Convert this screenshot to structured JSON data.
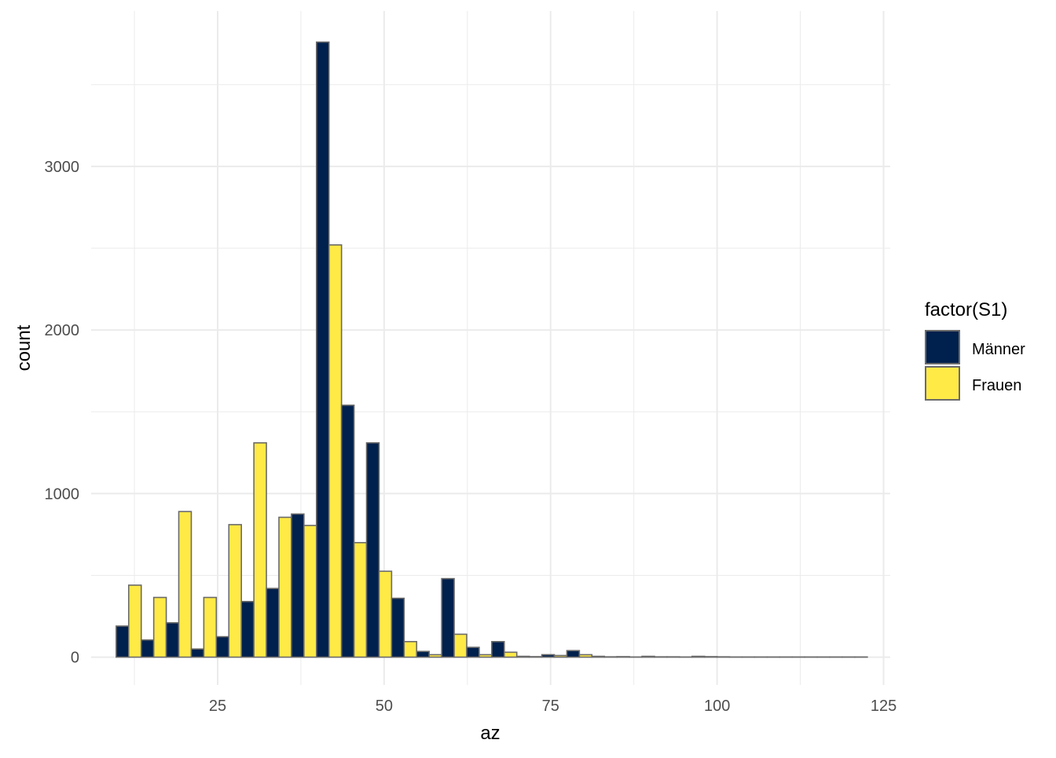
{
  "chart_data": {
    "type": "bar",
    "subtype": "histogram-dodged",
    "xlabel": "az",
    "ylabel": "count",
    "xlim": [
      6,
      126
    ],
    "ylim": [
      -170,
      3950
    ],
    "x_ticks": [
      25,
      50,
      75,
      100,
      125
    ],
    "y_ticks": [
      0,
      1000,
      2000,
      3000
    ],
    "x_tick_labels": [
      "25",
      "50",
      "75",
      "100",
      "125"
    ],
    "y_tick_labels": [
      "0",
      "1000",
      "2000",
      "3000"
    ],
    "grid": true,
    "legend": {
      "title": "factor(S1)",
      "position": "right",
      "entries": [
        "Männer",
        "Frauen"
      ]
    },
    "bin_width": 3.76,
    "bins": [
      11.64,
      15.4,
      19.16,
      22.92,
      26.68,
      30.44,
      34.2,
      37.96,
      41.72,
      45.48,
      49.24,
      53.0,
      56.76,
      60.52,
      64.28,
      68.04,
      71.8,
      75.56,
      79.32,
      83.08,
      86.84,
      90.6,
      94.36,
      98.12,
      101.88,
      105.64,
      109.4,
      113.16,
      116.92,
      120.68
    ],
    "series": [
      {
        "name": "Männer",
        "color": "#00204d",
        "values": [
          190,
          105,
          210,
          50,
          125,
          340,
          420,
          875,
          3760,
          1540,
          1310,
          360,
          35,
          480,
          60,
          95,
          5,
          15,
          40,
          5,
          3,
          5,
          2,
          5,
          2,
          1,
          1,
          1,
          1,
          1
        ]
      },
      {
        "name": "Frauen",
        "color": "#ffea46",
        "values": [
          440,
          365,
          890,
          365,
          810,
          1310,
          855,
          805,
          2520,
          700,
          525,
          95,
          15,
          140,
          15,
          30,
          3,
          10,
          15,
          2,
          1,
          2,
          1,
          3,
          1,
          1,
          1,
          1,
          1,
          1
        ]
      }
    ],
    "bar_outline_color": "#6b6b6b",
    "grid_color": "#ebebeb"
  }
}
